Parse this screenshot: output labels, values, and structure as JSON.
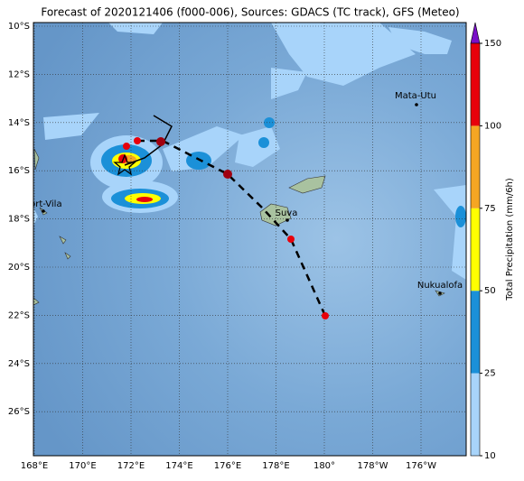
{
  "title": "Forecast of 2020121406 (f000-006), Sources: GDACS (TC track), GFS (Meteo)",
  "map": {
    "lat_labels": [
      "10°S",
      "12°S",
      "14°S",
      "16°S",
      "18°S",
      "20°S",
      "22°S",
      "24°S",
      "26°S"
    ],
    "lon_labels": [
      "168°E",
      "170°E",
      "172°E",
      "174°E",
      "176°E",
      "178°E",
      "180°",
      "178°W",
      "176°W"
    ],
    "places": [
      {
        "name": "Port-Vila"
      },
      {
        "name": "Suva"
      },
      {
        "name": "Mata-Utu"
      },
      {
        "name": "Nukualofa"
      }
    ]
  },
  "colorbar": {
    "label": "Total Precipitation (mm/6h)",
    "ticks": [
      10,
      25,
      50,
      75,
      100,
      150
    ],
    "colors": [
      "#a8d4fa",
      "#1b90d8",
      "#ffff00",
      "#f5a623",
      "#e8000b"
    ],
    "extend_color": "#7a10c8"
  }
}
